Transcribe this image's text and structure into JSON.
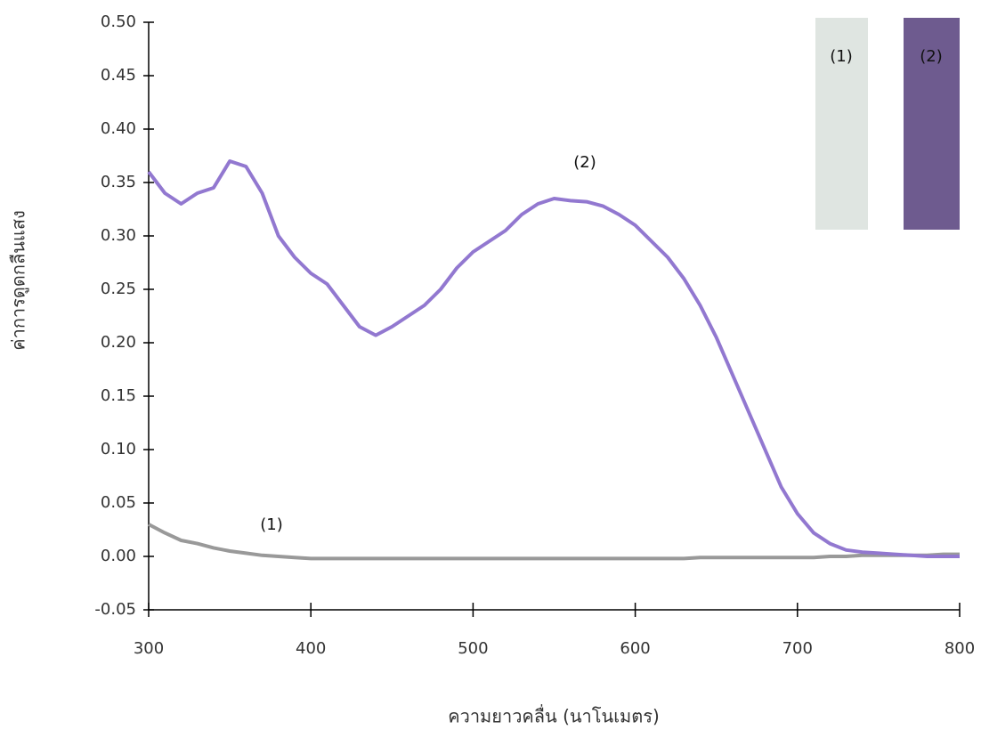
{
  "chart_data": {
    "type": "line",
    "x_label": "ความยาวคลื่น (นาโนเมตร)",
    "y_label": "ค่าการดูดกลืนแสง",
    "x": [
      300,
      310,
      320,
      330,
      340,
      350,
      360,
      370,
      380,
      390,
      400,
      410,
      420,
      430,
      440,
      450,
      460,
      470,
      480,
      490,
      500,
      510,
      520,
      530,
      540,
      550,
      560,
      570,
      580,
      590,
      600,
      610,
      620,
      630,
      640,
      650,
      660,
      670,
      680,
      690,
      700,
      710,
      720,
      730,
      740,
      750,
      760,
      770,
      780,
      790,
      800
    ],
    "series": [
      {
        "name": "(1)",
        "color": "#999999",
        "values": [
          0.03,
          0.022,
          0.015,
          0.012,
          0.008,
          0.005,
          0.003,
          0.001,
          0,
          -0.001,
          -0.002,
          -0.002,
          -0.002,
          -0.002,
          -0.002,
          -0.002,
          -0.002,
          -0.002,
          -0.002,
          -0.002,
          -0.002,
          -0.002,
          -0.002,
          -0.002,
          -0.002,
          -0.002,
          -0.002,
          -0.002,
          -0.002,
          -0.002,
          -0.002,
          -0.002,
          -0.002,
          -0.002,
          -0.001,
          -0.001,
          -0.001,
          -0.001,
          -0.001,
          -0.001,
          -0.001,
          -0.001,
          0,
          0,
          0.001,
          0.001,
          0.001,
          0.001,
          0.001,
          0.002,
          0.002
        ]
      },
      {
        "name": "(2)",
        "color": "#9278d0",
        "values": [
          0.36,
          0.34,
          0.33,
          0.34,
          0.345,
          0.37,
          0.365,
          0.34,
          0.3,
          0.28,
          0.265,
          0.255,
          0.235,
          0.215,
          0.207,
          0.215,
          0.225,
          0.235,
          0.25,
          0.27,
          0.285,
          0.295,
          0.305,
          0.32,
          0.33,
          0.335,
          0.333,
          0.332,
          0.328,
          0.32,
          0.31,
          0.295,
          0.28,
          0.26,
          0.235,
          0.205,
          0.17,
          0.135,
          0.1,
          0.065,
          0.04,
          0.022,
          0.012,
          0.006,
          0.004,
          0.003,
          0.002,
          0.001,
          0,
          0,
          0
        ]
      }
    ],
    "xlim": [
      300,
      800
    ],
    "xticks": [
      300,
      400,
      500,
      600,
      700,
      800
    ],
    "ylim": [
      -0.05,
      0.5
    ],
    "yticks": [
      -0.05,
      {
        "value": 0,
        "label": "0.00"
      },
      0.05,
      {
        "value": 0.1,
        "label": "0.10"
      },
      0.15,
      {
        "value": 0.2,
        "label": "0.20"
      },
      0.25,
      {
        "value": 0.3,
        "label": "0.30"
      },
      0.35,
      {
        "value": 0.4,
        "label": "0.40"
      },
      0.45,
      {
        "value": 0.5,
        "label": "0.50"
      }
    ]
  }
}
